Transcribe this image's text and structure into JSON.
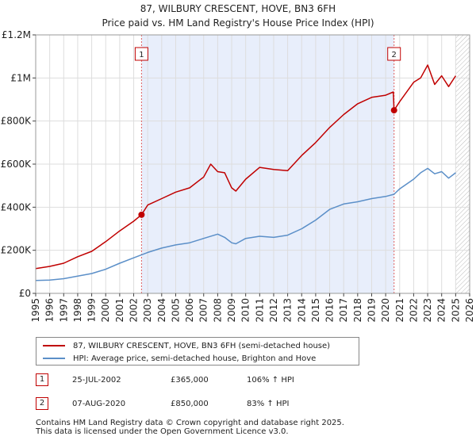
{
  "title_line1": "87, WILBURY CRESCENT, HOVE, BN3 6FH",
  "title_line2": "Price paid vs. HM Land Registry's House Price Index (HPI)",
  "chart_data": {
    "type": "line",
    "title": "87, WILBURY CRESCENT, HOVE, BN3 6FH — Price paid vs. HM Land Registry's House Price Index (HPI)",
    "xlim": [
      1995,
      2026
    ],
    "ylim": [
      0,
      1200000
    ],
    "x_ticks": [
      1995,
      1996,
      1997,
      1998,
      1999,
      2000,
      2001,
      2002,
      2003,
      2004,
      2005,
      2006,
      2007,
      2008,
      2009,
      2010,
      2011,
      2012,
      2013,
      2014,
      2015,
      2016,
      2017,
      2018,
      2019,
      2020,
      2021,
      2022,
      2023,
      2024,
      2025,
      2026
    ],
    "y_ticks": [
      0,
      200000,
      400000,
      600000,
      800000,
      1000000,
      1200000
    ],
    "y_tick_labels": [
      "£0",
      "£200K",
      "£400K",
      "£600K",
      "£800K",
      "£1M",
      "£1.2M"
    ],
    "grid": true,
    "shaded_range": [
      2002.56,
      2020.6
    ],
    "hatched_from": 2025.0,
    "series": [
      {
        "name": "87, WILBURY CRESCENT, HOVE, BN3 6FH (semi-detached house)",
        "color": "#c00000",
        "x": [
          1995.0,
          1996.0,
          1997.0,
          1998.0,
          1999.0,
          2000.0,
          2001.0,
          2002.0,
          2002.56,
          2003.0,
          2004.0,
          2005.0,
          2006.0,
          2007.0,
          2007.5,
          2008.0,
          2008.5,
          2009.0,
          2009.3,
          2010.0,
          2011.0,
          2012.0,
          2013.0,
          2014.0,
          2015.0,
          2016.0,
          2017.0,
          2018.0,
          2019.0,
          2020.0,
          2020.55,
          2020.6,
          2021.0,
          2022.0,
          2022.5,
          2023.0,
          2023.5,
          2024.0,
          2024.5,
          2025.0
        ],
        "y": [
          115000,
          125000,
          140000,
          170000,
          195000,
          240000,
          290000,
          335000,
          365000,
          410000,
          440000,
          470000,
          490000,
          540000,
          600000,
          565000,
          560000,
          490000,
          475000,
          530000,
          585000,
          575000,
          570000,
          640000,
          700000,
          770000,
          830000,
          880000,
          910000,
          920000,
          935000,
          850000,
          890000,
          980000,
          1000000,
          1060000,
          970000,
          1010000,
          960000,
          1010000
        ]
      },
      {
        "name": "HPI: Average price, semi-detached house, Brighton and Hove",
        "color": "#5b8fc8",
        "x": [
          1995.0,
          1996.0,
          1997.0,
          1998.0,
          1999.0,
          2000.0,
          2001.0,
          2002.0,
          2003.0,
          2004.0,
          2005.0,
          2006.0,
          2007.0,
          2008.0,
          2008.5,
          2009.0,
          2009.3,
          2010.0,
          2011.0,
          2012.0,
          2013.0,
          2014.0,
          2015.0,
          2016.0,
          2017.0,
          2018.0,
          2019.0,
          2020.0,
          2020.6,
          2021.0,
          2022.0,
          2022.5,
          2023.0,
          2023.5,
          2024.0,
          2024.5,
          2025.0
        ],
        "y": [
          60000,
          62000,
          68000,
          80000,
          92000,
          112000,
          140000,
          165000,
          190000,
          210000,
          225000,
          235000,
          255000,
          275000,
          260000,
          235000,
          230000,
          255000,
          265000,
          260000,
          270000,
          300000,
          340000,
          390000,
          415000,
          425000,
          440000,
          450000,
          460000,
          485000,
          530000,
          560000,
          580000,
          555000,
          565000,
          535000,
          560000
        ]
      }
    ],
    "sales": [
      {
        "id": "1",
        "x": 2002.56,
        "value": 365000
      },
      {
        "id": "2",
        "x": 2020.6,
        "value": 850000
      }
    ],
    "legend_position": "bottom"
  },
  "legend": {
    "property_label": "87, WILBURY CRESCENT, HOVE, BN3 6FH (semi-detached house)",
    "hpi_label": "HPI: Average price, semi-detached house, Brighton and Hove"
  },
  "sales_table": [
    {
      "id": "1",
      "date": "25-JUL-2002",
      "price": "£365,000",
      "hpi": "106% ↑ HPI"
    },
    {
      "id": "2",
      "date": "07-AUG-2020",
      "price": "£850,000",
      "hpi": "83% ↑ HPI"
    }
  ],
  "footer": {
    "line1": "Contains HM Land Registry data © Crown copyright and database right 2025.",
    "line2": "This data is licensed under the Open Government Licence v3.0."
  },
  "colors": {
    "property": "#c00000",
    "hpi": "#5b8fc8",
    "shade": "#e8eefb",
    "grid": "#dddddd",
    "marker_line": "#e06060"
  }
}
